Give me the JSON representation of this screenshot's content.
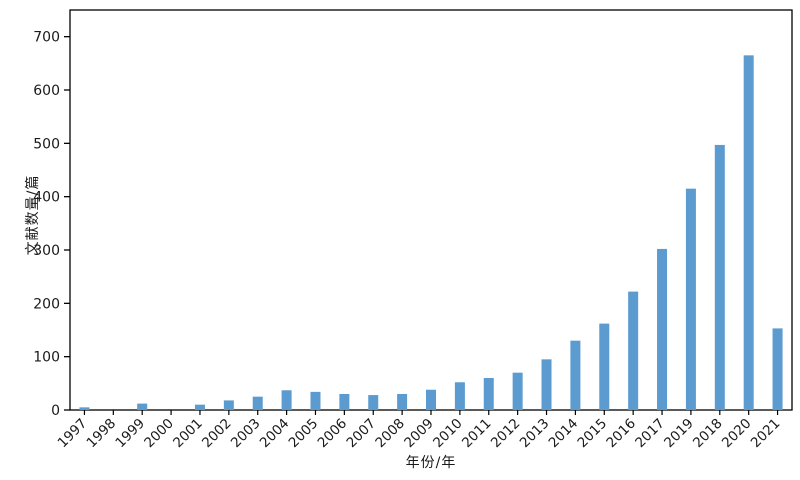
{
  "chart_data": {
    "type": "bar",
    "title": "",
    "xlabel": "年份/年",
    "ylabel": "文献数量/篇",
    "categories": [
      "1997",
      "1998",
      "1999",
      "2000",
      "2001",
      "2002",
      "2003",
      "2004",
      "2005",
      "2006",
      "2007",
      "2008",
      "2009",
      "2010",
      "2011",
      "2012",
      "2013",
      "2014",
      "2015",
      "2016",
      "2017",
      "2019",
      "2018",
      "2020",
      "2021"
    ],
    "values": [
      5,
      0,
      12,
      0,
      10,
      18,
      25,
      37,
      34,
      30,
      28,
      30,
      38,
      52,
      60,
      70,
      95,
      130,
      162,
      222,
      302,
      415,
      497,
      665,
      153
    ],
    "ylim": [
      0,
      750
    ],
    "yticks": [
      0,
      100,
      200,
      300,
      400,
      500,
      600,
      700
    ],
    "bar_color": "#5b9bd0",
    "axis_color": "#000000",
    "tick_label_color": "#1a1a1a",
    "grid": false,
    "legend": "none"
  }
}
